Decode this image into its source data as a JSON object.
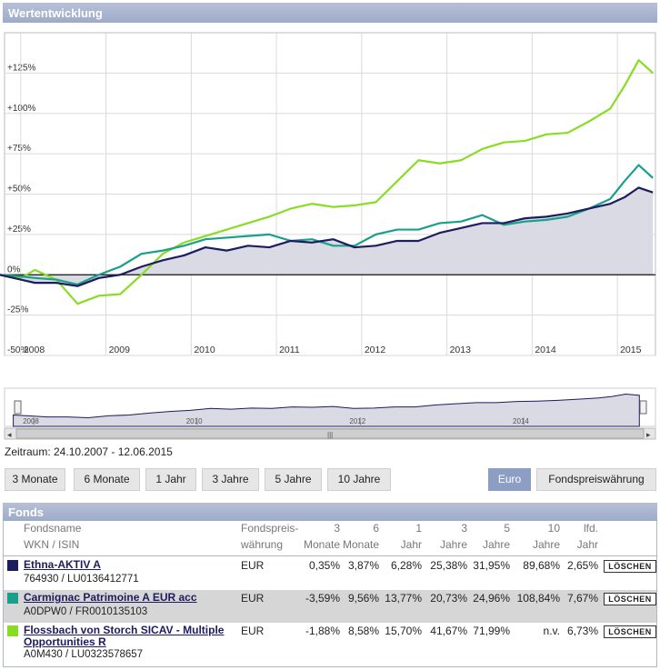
{
  "wertentwicklung": {
    "title": "Wertentwicklung"
  },
  "chart_data": {
    "type": "line",
    "x_ticks": [
      "2008",
      "2009",
      "2010",
      "2011",
      "2012",
      "2013",
      "2014",
      "2015"
    ],
    "y_ticks": [
      "+125%",
      "+100%",
      "+75%",
      "+50%",
      "+25%",
      "0%",
      "-25%",
      "-50%"
    ],
    "ylim": [
      -50,
      150
    ],
    "xlim": [
      "2008-01-01",
      "2015-06-12"
    ],
    "grid": true,
    "x": [
      "2007-10",
      "2008-01",
      "2008-03",
      "2008-06",
      "2008-09",
      "2008-12",
      "2009-03",
      "2009-06",
      "2009-09",
      "2009-12",
      "2010-03",
      "2010-06",
      "2010-09",
      "2010-12",
      "2011-03",
      "2011-06",
      "2011-09",
      "2011-12",
      "2012-03",
      "2012-06",
      "2012-09",
      "2012-12",
      "2013-03",
      "2013-06",
      "2013-09",
      "2013-12",
      "2014-03",
      "2014-06",
      "2014-09",
      "2014-12",
      "2015-02",
      "2015-04",
      "2015-06"
    ],
    "series": [
      {
        "name": "Ethna-AKTIV A",
        "color": "#1c1c5e",
        "fill": true,
        "values": [
          0,
          -3,
          -5,
          -5,
          -7,
          -2,
          0,
          5,
          9,
          12,
          17,
          15,
          18,
          17,
          21,
          20,
          22,
          17,
          18,
          21,
          21,
          26,
          29,
          32,
          32,
          35,
          36,
          38,
          41,
          44,
          48,
          54,
          51
        ]
      },
      {
        "name": "Carmignac Patrimoine A EUR acc",
        "color": "#1aa08a",
        "values": [
          0,
          -1,
          -2,
          -3,
          -6,
          0,
          5,
          13,
          15,
          18,
          22,
          23,
          24,
          25,
          21,
          22,
          18,
          18,
          25,
          28,
          28,
          32,
          33,
          37,
          31,
          33,
          34,
          36,
          41,
          47,
          58,
          68,
          60
        ]
      },
      {
        "name": "Flossbach von Storch SICAV - Multiple Opportunities R",
        "color": "#88dd22",
        "values": [
          0,
          -2,
          3,
          -3,
          -18,
          -13,
          -12,
          0,
          13,
          20,
          24,
          28,
          32,
          36,
          41,
          44,
          42,
          43,
          45,
          58,
          71,
          69,
          71,
          78,
          82,
          83,
          87,
          88,
          95,
          103,
          117,
          133,
          125
        ]
      }
    ]
  },
  "navigator": {
    "ticks": [
      "2008",
      "2010",
      "2012",
      "2014"
    ],
    "scroll_label": "|||"
  },
  "zeitraum": "Zeitraum: 24.10.2007 - 12.06.2015",
  "range_buttons": [
    "3 Monate",
    "6 Monate",
    "1 Jahr",
    "3 Jahre",
    "5 Jahre",
    "10 Jahre"
  ],
  "currency_buttons": {
    "euro": "Euro",
    "fund": "Fondspreiswährung"
  },
  "fonds": {
    "title": "Fonds",
    "headers": {
      "name": "Fondsname",
      "wkn": "WKN / ISIN",
      "curr1": "Fondspreis-",
      "curr2": "währung",
      "m3a": "3",
      "m3b": "Monate",
      "m6a": "6",
      "m6b": "Monate",
      "y1a": "1",
      "y1b": "Jahr",
      "y3a": "3",
      "y3b": "Jahre",
      "y5a": "5",
      "y5b": "Jahre",
      "y10a": "10",
      "y10b": "Jahre",
      "lfda": "lfd.",
      "lfdb": "Jahr"
    },
    "rows": [
      {
        "color": "#1c1c5e",
        "name": "Ethna-AKTIV A",
        "wkn": "764930 / LU0136412771",
        "currency": "EUR",
        "m3": "0,35%",
        "m6": "3,87%",
        "y1": "6,28%",
        "y3": "25,38%",
        "y5": "31,95%",
        "y10": "89,68%",
        "lfd": "2,65%",
        "delete": "LÖSCHEN"
      },
      {
        "color": "#1aa08a",
        "name": "Carmignac Patrimoine A EUR acc",
        "wkn": "A0DPW0 / FR0010135103",
        "currency": "EUR",
        "m3": "-3,59%",
        "m6": "9,56%",
        "y1": "13,77%",
        "y3": "20,73%",
        "y5": "24,96%",
        "y10": "108,84%",
        "lfd": "7,67%",
        "delete": "LÖSCHEN"
      },
      {
        "color": "#88dd22",
        "name": "Flossbach von Storch SICAV - Multiple Opportunities R",
        "wkn": "A0M430 / LU0323578657",
        "currency": "EUR",
        "m3": "-1,88%",
        "m6": "8,58%",
        "y1": "15,70%",
        "y3": "41,67%",
        "y5": "71,99%",
        "y10": "n.v.",
        "lfd": "6,73%",
        "delete": "LÖSCHEN"
      }
    ]
  }
}
